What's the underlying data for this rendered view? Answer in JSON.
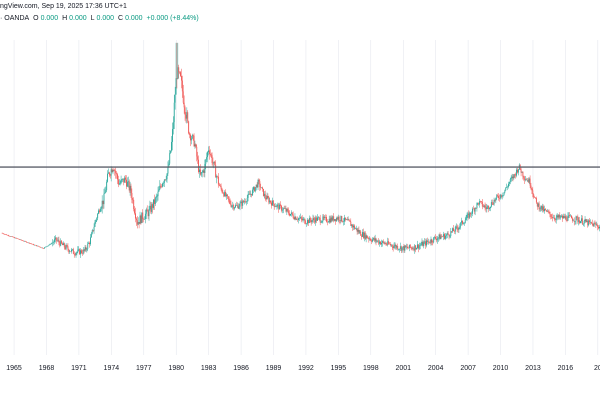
{
  "header": {
    "published": "ngView.com, Sep 19, 2025 17:36 UTC+1",
    "symbol": "· OANDA",
    "open_label": "O",
    "open_value": "0.000",
    "high_label": "H",
    "high_value": "0.000",
    "low_label": "L",
    "low_value": "0.000",
    "close_label": "C",
    "close_value": "0.000",
    "change": "+0.000 (+8.44%)"
  },
  "colors": {
    "up": "#26a69a",
    "down": "#ef5350",
    "level": "#5d606b",
    "grid": "#e0e3eb"
  },
  "chart_data": {
    "type": "candlestick",
    "x_ticks": [
      "1965",
      "1968",
      "1971",
      "1974",
      "1977",
      "1980",
      "1983",
      "1986",
      "1989",
      "1992",
      "1995",
      "1998",
      "2001",
      "2004",
      "2007",
      "2010",
      "2013",
      "2016",
      "20"
    ],
    "xlim": [
      1963.7,
      2019.2
    ],
    "y_scale": "log",
    "ylim": [
      0.0028,
      0.095
    ],
    "horizontal_level": 0.0224,
    "anchors": [
      [
        1963.8,
        0.0106
      ],
      [
        1966.5,
        0.0094
      ],
      [
        1967.7,
        0.0089
      ],
      [
        1968.3,
        0.0093
      ],
      [
        1968.9,
        0.0098
      ],
      [
        1969.6,
        0.0091
      ],
      [
        1970.5,
        0.0085
      ],
      [
        1971.5,
        0.0086
      ],
      [
        1972.0,
        0.0096
      ],
      [
        1972.5,
        0.012
      ],
      [
        1973.0,
        0.0145
      ],
      [
        1973.3,
        0.0155
      ],
      [
        1973.7,
        0.0205
      ],
      [
        1974.2,
        0.0228
      ],
      [
        1974.7,
        0.0185
      ],
      [
        1975.3,
        0.0195
      ],
      [
        1975.8,
        0.017
      ],
      [
        1976.4,
        0.012
      ],
      [
        1976.9,
        0.0128
      ],
      [
        1977.5,
        0.0135
      ],
      [
        1978.2,
        0.0158
      ],
      [
        1978.7,
        0.019
      ],
      [
        1979.2,
        0.021
      ],
      [
        1979.6,
        0.03
      ],
      [
        1979.9,
        0.052
      ],
      [
        1980.05,
        0.066
      ],
      [
        1980.4,
        0.06
      ],
      [
        1980.8,
        0.045
      ],
      [
        1981.2,
        0.033
      ],
      [
        1981.7,
        0.0295
      ],
      [
        1982.2,
        0.02
      ],
      [
        1982.6,
        0.022
      ],
      [
        1983.0,
        0.028
      ],
      [
        1983.5,
        0.0225
      ],
      [
        1984.0,
        0.018
      ],
      [
        1984.6,
        0.016
      ],
      [
        1985.1,
        0.0146
      ],
      [
        1985.6,
        0.0143
      ],
      [
        1986.2,
        0.015
      ],
      [
        1987.0,
        0.0168
      ],
      [
        1987.6,
        0.0188
      ],
      [
        1988.2,
        0.016
      ],
      [
        1988.8,
        0.015
      ],
      [
        1989.4,
        0.0143
      ],
      [
        1990.0,
        0.0138
      ],
      [
        1991.0,
        0.0127
      ],
      [
        1992.0,
        0.0121
      ],
      [
        1993.0,
        0.0124
      ],
      [
        1994.0,
        0.0123
      ],
      [
        1995.0,
        0.0126
      ],
      [
        1996.0,
        0.0119
      ],
      [
        1997.0,
        0.0106
      ],
      [
        1998.0,
        0.0099
      ],
      [
        1999.0,
        0.0095
      ],
      [
        2000.0,
        0.0092
      ],
      [
        2001.0,
        0.0089
      ],
      [
        2002.0,
        0.009
      ],
      [
        2003.0,
        0.0094
      ],
      [
        2004.0,
        0.01
      ],
      [
        2005.0,
        0.0103
      ],
      [
        2006.0,
        0.0112
      ],
      [
        2007.0,
        0.0128
      ],
      [
        2008.0,
        0.015
      ],
      [
        2008.7,
        0.014
      ],
      [
        2009.5,
        0.0155
      ],
      [
        2010.3,
        0.0168
      ],
      [
        2010.8,
        0.0188
      ],
      [
        2011.3,
        0.0205
      ],
      [
        2011.7,
        0.0225
      ],
      [
        2012.2,
        0.02
      ],
      [
        2012.7,
        0.019
      ],
      [
        2013.3,
        0.0148
      ],
      [
        2014.0,
        0.0137
      ],
      [
        2015.0,
        0.0126
      ],
      [
        2016.2,
        0.0126
      ],
      [
        2017.0,
        0.0124
      ],
      [
        2018.0,
        0.0119
      ],
      [
        2019.2,
        0.0114
      ]
    ]
  }
}
